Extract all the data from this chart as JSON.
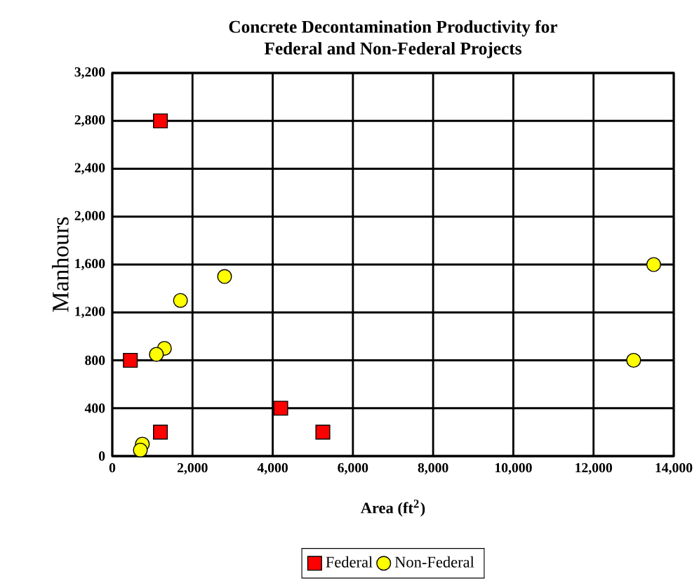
{
  "chart_data": {
    "type": "scatter",
    "title": "Concrete Decontamination Productivity for Federal and Non-Federal Projects",
    "xlabel": "Area (ft$^{2}$)",
    "ylabel": "Manhours",
    "series": [
      {
        "name": "Federal",
        "color": "#ff0000",
        "marker": "square",
        "x": [
          1200,
          450,
          1200,
          4200,
          5250
        ],
        "values": [
          2800,
          800,
          200,
          400,
          200
        ]
      },
      {
        "name": "Non-Federal",
        "color": "#ffff00",
        "marker": "circle",
        "x": [
          2800,
          1700,
          1300,
          1100,
          750,
          700,
          13500,
          13000
        ],
        "values": [
          1500,
          1300,
          900,
          850,
          100,
          50,
          1600,
          800
        ]
      }
    ],
    "xlim": [
      0,
      14000
    ],
    "xticks": [
      0,
      {
        "value": 2000,
        "label": "2,000"
      },
      {
        "value": 4000,
        "label": "4,000"
      },
      {
        "value": 6000,
        "label": "6,000"
      },
      {
        "value": 8000,
        "label": "8,000"
      },
      {
        "value": 10000,
        "label": "10,000"
      },
      {
        "value": 12000,
        "label": "12,000"
      },
      {
        "value": 14000,
        "label": "14,000"
      }
    ],
    "ylim": [
      0,
      3200
    ],
    "yticks": [
      0,
      400,
      800,
      {
        "value": 1200,
        "label": "1,200"
      },
      {
        "value": 1600,
        "label": "1,600"
      },
      {
        "value": 2000,
        "label": "2,000"
      },
      {
        "value": 2400,
        "label": "2,400"
      },
      {
        "value": 2800,
        "label": "2,800"
      },
      {
        "value": 3200,
        "label": "3,200"
      }
    ],
    "grid": true,
    "legend": "bottom"
  }
}
